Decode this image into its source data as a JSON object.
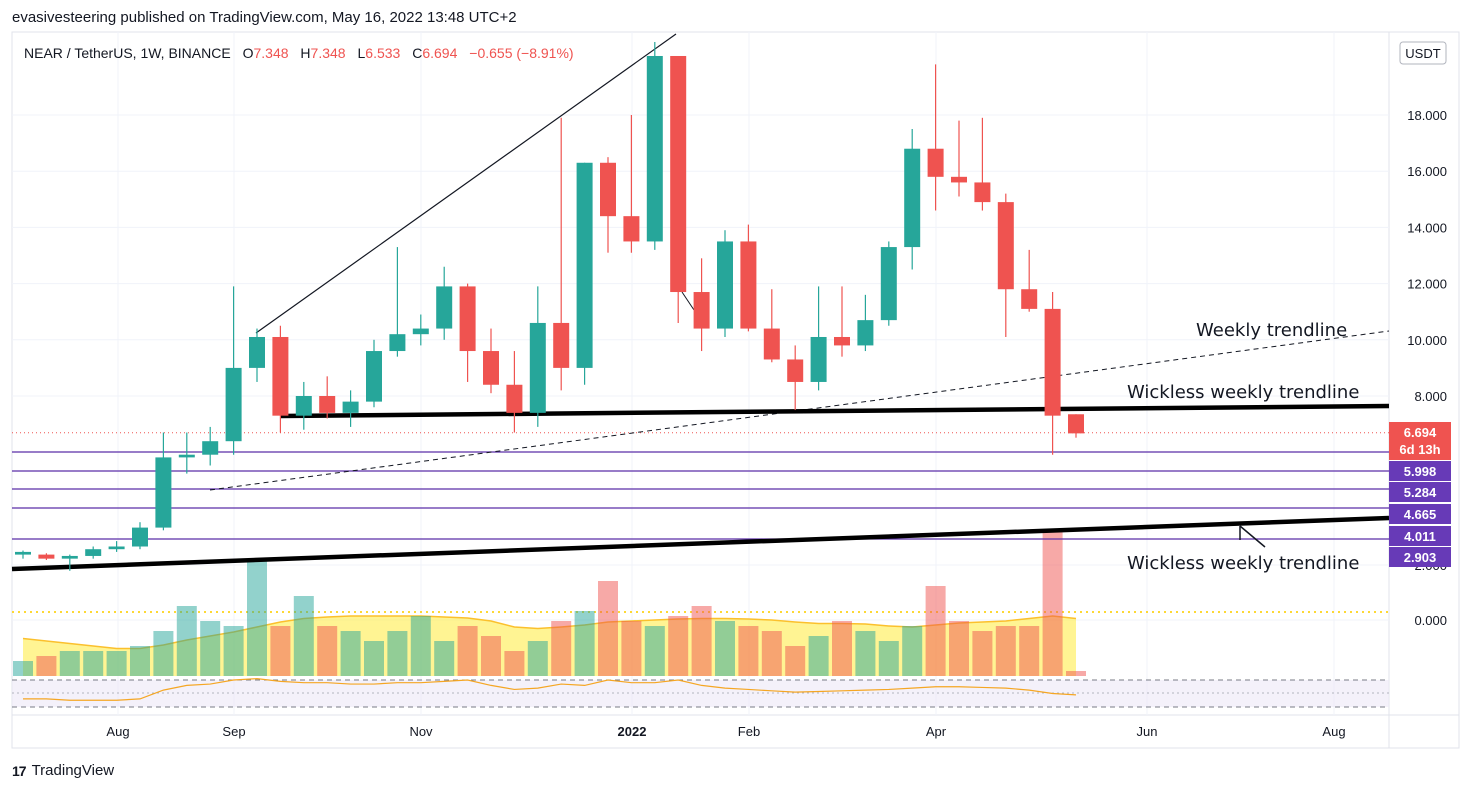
{
  "publisher": "evasivesteering published on TradingView.com, May 16, 2022 13:48 UTC+2",
  "footer": {
    "logo_mark": "17",
    "brand": "TradingView"
  },
  "header": {
    "symbol": "NEAR / TetherUS, 1W, BINANCE",
    "o_label": "O",
    "o_value": "7.348",
    "h_label": "H",
    "h_value": "7.348",
    "l_label": "L",
    "l_value": "6.533",
    "c_label": "C",
    "c_value": "6.694",
    "change": "−0.655 (−8.91%)"
  },
  "currency_badge": "USDT",
  "colors": {
    "up": "#26a69a",
    "down": "#ef5350",
    "level": "#5b2fa8",
    "badge": "#673ab7",
    "volume_ma": "#ffeb3b"
  },
  "chart_data": {
    "type": "candlestick",
    "y_ticks": [
      "18.000",
      "16.000",
      "14.000",
      "12.000",
      "10.000",
      "8.000",
      "2.000",
      "0.000"
    ],
    "x_ticks": [
      "Aug",
      "Sep",
      "Nov",
      "2022",
      "Feb",
      "Apr",
      "Jun",
      "Aug"
    ],
    "ylim": [
      2.0,
      20.5
    ],
    "candles": [
      {
        "o": 2.2,
        "h": 2.35,
        "l": 2.05,
        "c": 2.3
      },
      {
        "o": 2.2,
        "h": 2.25,
        "l": 2.0,
        "c": 2.05
      },
      {
        "o": 2.05,
        "h": 2.2,
        "l": 1.6,
        "c": 2.15
      },
      {
        "o": 2.15,
        "h": 2.5,
        "l": 2.05,
        "c": 2.4
      },
      {
        "o": 2.4,
        "h": 2.7,
        "l": 2.3,
        "c": 2.5
      },
      {
        "o": 2.5,
        "h": 3.4,
        "l": 2.4,
        "c": 3.2
      },
      {
        "o": 3.2,
        "h": 6.7,
        "l": 3.1,
        "c": 5.8
      },
      {
        "o": 5.8,
        "h": 6.7,
        "l": 5.2,
        "c": 5.9
      },
      {
        "o": 5.9,
        "h": 6.9,
        "l": 5.5,
        "c": 6.4
      },
      {
        "o": 6.4,
        "h": 11.9,
        "l": 5.9,
        "c": 9.0
      },
      {
        "o": 9.0,
        "h": 10.4,
        "l": 8.5,
        "c": 10.1
      },
      {
        "o": 10.1,
        "h": 10.5,
        "l": 6.7,
        "c": 7.3
      },
      {
        "o": 7.3,
        "h": 8.5,
        "l": 6.8,
        "c": 8.0
      },
      {
        "o": 8.0,
        "h": 8.7,
        "l": 7.2,
        "c": 7.4
      },
      {
        "o": 7.4,
        "h": 8.2,
        "l": 6.9,
        "c": 7.8
      },
      {
        "o": 7.8,
        "h": 10.0,
        "l": 7.6,
        "c": 9.6
      },
      {
        "o": 9.6,
        "h": 13.3,
        "l": 9.4,
        "c": 10.2
      },
      {
        "o": 10.2,
        "h": 10.9,
        "l": 9.8,
        "c": 10.4
      },
      {
        "o": 10.4,
        "h": 12.6,
        "l": 10.0,
        "c": 11.9
      },
      {
        "o": 11.9,
        "h": 12.0,
        "l": 8.5,
        "c": 9.6
      },
      {
        "o": 9.6,
        "h": 10.4,
        "l": 8.1,
        "c": 8.4
      },
      {
        "o": 8.4,
        "h": 9.6,
        "l": 6.7,
        "c": 7.4
      },
      {
        "o": 7.4,
        "h": 11.9,
        "l": 6.9,
        "c": 10.6
      },
      {
        "o": 10.6,
        "h": 17.9,
        "l": 8.2,
        "c": 9.0
      },
      {
        "o": 9.0,
        "h": 16.3,
        "l": 8.4,
        "c": 16.3
      },
      {
        "o": 16.3,
        "h": 16.5,
        "l": 13.1,
        "c": 14.4
      },
      {
        "o": 14.4,
        "h": 18.0,
        "l": 13.1,
        "c": 13.5
      },
      {
        "o": 13.5,
        "h": 20.6,
        "l": 13.2,
        "c": 20.1
      },
      {
        "o": 20.1,
        "h": 20.1,
        "l": 10.6,
        "c": 11.7
      },
      {
        "o": 11.7,
        "h": 12.9,
        "l": 9.6,
        "c": 10.4
      },
      {
        "o": 10.4,
        "h": 13.9,
        "l": 10.1,
        "c": 13.5
      },
      {
        "o": 13.5,
        "h": 14.1,
        "l": 10.3,
        "c": 10.4
      },
      {
        "o": 10.4,
        "h": 11.8,
        "l": 9.2,
        "c": 9.3
      },
      {
        "o": 9.3,
        "h": 9.8,
        "l": 7.5,
        "c": 8.5
      },
      {
        "o": 8.5,
        "h": 11.9,
        "l": 8.2,
        "c": 10.1
      },
      {
        "o": 10.1,
        "h": 11.9,
        "l": 9.4,
        "c": 9.8
      },
      {
        "o": 9.8,
        "h": 11.6,
        "l": 9.6,
        "c": 10.7
      },
      {
        "o": 10.7,
        "h": 13.5,
        "l": 10.5,
        "c": 13.3
      },
      {
        "o": 13.3,
        "h": 17.5,
        "l": 12.5,
        "c": 16.8
      },
      {
        "o": 16.8,
        "h": 19.8,
        "l": 14.6,
        "c": 15.8
      },
      {
        "o": 15.8,
        "h": 17.8,
        "l": 15.1,
        "c": 15.6
      },
      {
        "o": 15.6,
        "h": 17.9,
        "l": 14.6,
        "c": 14.9
      },
      {
        "o": 14.9,
        "h": 15.2,
        "l": 10.1,
        "c": 11.8
      },
      {
        "o": 11.8,
        "h": 13.2,
        "l": 11.0,
        "c": 11.1
      },
      {
        "o": 11.1,
        "h": 11.7,
        "l": 5.9,
        "c": 7.3
      },
      {
        "o": 7.35,
        "h": 7.35,
        "l": 6.53,
        "c": 6.69
      }
    ],
    "volume": [
      0.3,
      0.4,
      0.5,
      0.5,
      0.5,
      0.6,
      0.9,
      1.4,
      1.1,
      1.0,
      2.3,
      1.0,
      1.6,
      1.0,
      0.9,
      0.7,
      0.9,
      1.2,
      0.7,
      1.0,
      0.8,
      0.5,
      0.7,
      1.1,
      1.3,
      1.9,
      1.1,
      1.0,
      1.2,
      1.4,
      1.1,
      1.0,
      0.9,
      0.6,
      0.8,
      1.1,
      0.9,
      0.7,
      1.0,
      1.8,
      1.1,
      0.9,
      1.0,
      1.0,
      2.9,
      0.1
    ],
    "volume_ma": [
      0.75,
      0.7,
      0.65,
      0.6,
      0.55,
      0.55,
      0.62,
      0.72,
      0.8,
      0.88,
      0.98,
      1.08,
      1.15,
      1.18,
      1.2,
      1.2,
      1.2,
      1.2,
      1.18,
      1.16,
      1.1,
      0.98,
      0.95,
      0.98,
      1.02,
      1.08,
      1.1,
      1.12,
      1.14,
      1.15,
      1.15,
      1.14,
      1.12,
      1.08,
      1.05,
      1.05,
      1.04,
      1.0,
      0.98,
      1.02,
      1.06,
      1.08,
      1.1,
      1.15,
      1.2,
      1.15
    ],
    "rsi": [
      42,
      42,
      40,
      40,
      40,
      42,
      55,
      62,
      64,
      70,
      72,
      68,
      66,
      66,
      64,
      64,
      66,
      66,
      68,
      70,
      62,
      56,
      58,
      64,
      62,
      70,
      66,
      66,
      70,
      62,
      58,
      56,
      54,
      52,
      53,
      54,
      55,
      56,
      58,
      60,
      60,
      59,
      58,
      55,
      50,
      48
    ],
    "current_price": "6.694",
    "countdown": "6d 13h",
    "levels": [
      {
        "value": "5.998",
        "price": 5.998
      },
      {
        "value": "5.284",
        "price": 5.284
      },
      {
        "value": "4.665",
        "price": 4.665
      },
      {
        "value": "4.011",
        "price": 4.011
      },
      {
        "value": "2.903",
        "price": 2.903
      }
    ],
    "annotations": [
      "Weekly trendline",
      "Wickless weekly trendline",
      "Wickless weekly trendline"
    ]
  }
}
